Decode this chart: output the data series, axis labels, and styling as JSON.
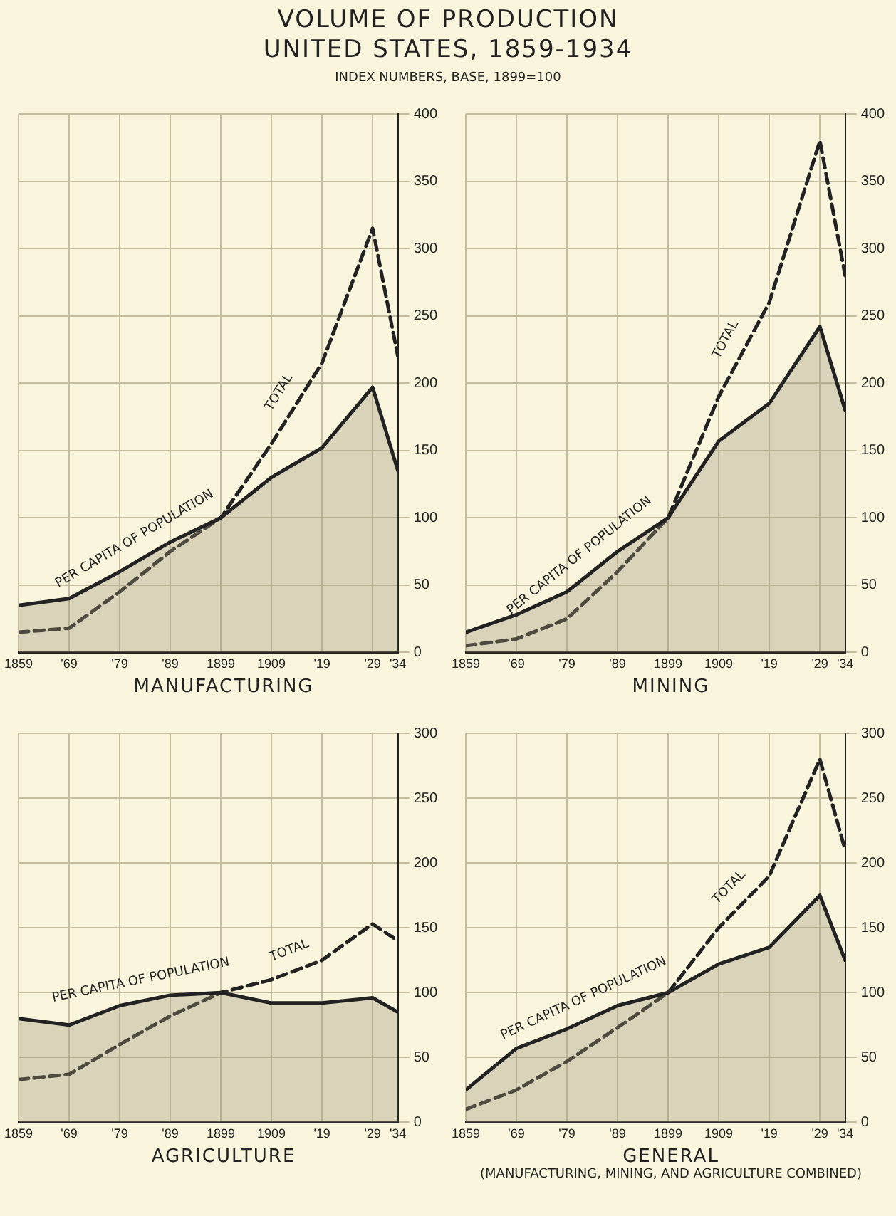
{
  "chart_data": [
    {
      "type": "line",
      "title": "VOLUME OF PRODUCTION UNITED STATES, 1859-1934",
      "subtitle": "INDEX NUMBERS, BASE, 1899=100",
      "xlabel": "MANUFACTURING",
      "x": [
        1859,
        1869,
        1879,
        1889,
        1899,
        1909,
        1919,
        1929,
        1934
      ],
      "series": [
        {
          "name": "PER CAPITA OF POPULATION",
          "type": "area",
          "color": "#222222",
          "values": [
            35,
            40,
            60,
            82,
            100,
            130,
            152,
            197,
            135
          ]
        },
        {
          "name": "TOTAL",
          "type": "line",
          "color": "#222222",
          "line_style": "dashed",
          "values": [
            15,
            18,
            45,
            75,
            100,
            155,
            215,
            315,
            220
          ]
        }
      ],
      "xlim": [
        1859,
        1934
      ],
      "xticks": [
        1859,
        {
          "value": 1869,
          "label": "'69"
        },
        {
          "value": 1879,
          "label": "'79"
        },
        {
          "value": 1889,
          "label": "'89"
        },
        1899,
        1909,
        {
          "value": 1919,
          "label": "'19"
        },
        {
          "value": 1929,
          "label": "'29"
        },
        {
          "value": 1934,
          "label": "'34"
        }
      ],
      "ylim": [
        0,
        400
      ],
      "yticks": [
        0,
        50,
        100,
        150,
        200,
        250,
        300,
        350,
        400
      ],
      "grid": true,
      "legend": false
    },
    {
      "type": "line",
      "xlabel": "MINING",
      "x": [
        1859,
        1869,
        1879,
        1889,
        1899,
        1909,
        1919,
        1929,
        1934
      ],
      "series": [
        {
          "name": "PER CAPITA OF POPULATION",
          "type": "area",
          "color": "#222222",
          "values": [
            15,
            28,
            45,
            75,
            100,
            157,
            185,
            242,
            180
          ]
        },
        {
          "name": "TOTAL",
          "type": "line",
          "color": "#222222",
          "line_style": "dashed",
          "values": [
            5,
            10,
            25,
            60,
            100,
            190,
            260,
            380,
            280
          ]
        }
      ],
      "xlim": [
        1859,
        1934
      ],
      "xticks": [
        1859,
        {
          "value": 1869,
          "label": "'69"
        },
        {
          "value": 1879,
          "label": "'79"
        },
        {
          "value": 1889,
          "label": "'89"
        },
        1899,
        1909,
        {
          "value": 1919,
          "label": "'19"
        },
        {
          "value": 1929,
          "label": "'29"
        },
        {
          "value": 1934,
          "label": "'34"
        }
      ],
      "ylim": [
        0,
        400
      ],
      "yticks": [
        0,
        50,
        100,
        150,
        200,
        250,
        300,
        350,
        400
      ],
      "grid": true,
      "legend": false
    },
    {
      "type": "line",
      "xlabel": "AGRICULTURE",
      "x": [
        1859,
        1869,
        1879,
        1889,
        1899,
        1909,
        1919,
        1929,
        1934
      ],
      "series": [
        {
          "name": "PER CAPITA OF POPULATION",
          "type": "area",
          "color": "#222222",
          "values": [
            80,
            75,
            90,
            98,
            100,
            92,
            92,
            96,
            85
          ]
        },
        {
          "name": "TOTAL",
          "type": "line",
          "color": "#222222",
          "line_style": "dashed",
          "values": [
            33,
            37,
            60,
            82,
            100,
            110,
            125,
            153,
            140
          ]
        }
      ],
      "xlim": [
        1859,
        1934
      ],
      "xticks": [
        1859,
        {
          "value": 1869,
          "label": "'69"
        },
        {
          "value": 1879,
          "label": "'79"
        },
        {
          "value": 1889,
          "label": "'89"
        },
        1899,
        1909,
        {
          "value": 1919,
          "label": "'19"
        },
        {
          "value": 1929,
          "label": "'29"
        },
        {
          "value": 1934,
          "label": "'34"
        }
      ],
      "ylim": [
        0,
        300
      ],
      "yticks": [
        0,
        50,
        100,
        150,
        200,
        250,
        300
      ],
      "grid": true,
      "legend": false
    },
    {
      "type": "line",
      "xlabel": "GENERAL",
      "annotations": [
        "(MANUFACTURING, MINING, AND AGRICULTURE COMBINED)"
      ],
      "x": [
        1859,
        1869,
        1879,
        1889,
        1899,
        1909,
        1919,
        1929,
        1934
      ],
      "series": [
        {
          "name": "PER CAPITA OF POPULATION",
          "type": "area",
          "color": "#222222",
          "values": [
            25,
            57,
            72,
            90,
            100,
            122,
            135,
            175,
            125
          ]
        },
        {
          "name": "TOTAL",
          "type": "line",
          "color": "#222222",
          "line_style": "dashed",
          "values": [
            10,
            25,
            47,
            73,
            100,
            150,
            190,
            280,
            210
          ]
        }
      ],
      "xlim": [
        1859,
        1934
      ],
      "xticks": [
        1859,
        {
          "value": 1869,
          "label": "'69"
        },
        {
          "value": 1879,
          "label": "'79"
        },
        {
          "value": 1889,
          "label": "'89"
        },
        1899,
        1909,
        {
          "value": 1919,
          "label": "'19"
        },
        {
          "value": 1929,
          "label": "'29"
        },
        {
          "value": 1934,
          "label": "'34"
        }
      ],
      "ylim": [
        0,
        300
      ],
      "yticks": [
        0,
        50,
        100,
        150,
        200,
        250,
        300
      ],
      "grid": true,
      "legend": false
    }
  ]
}
